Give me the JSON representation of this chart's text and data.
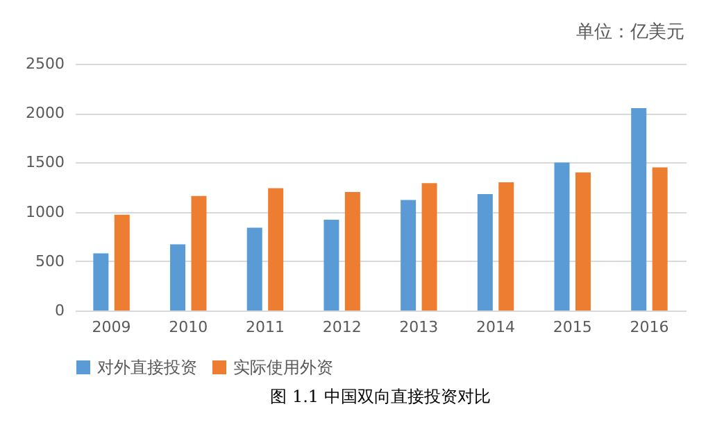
{
  "chart_data": {
    "type": "bar",
    "title": "图 1.1  中国双向直接投资对比",
    "annotations": [
      "单位：亿美元"
    ],
    "categories": [
      "2009",
      "2010",
      "2011",
      "2012",
      "2013",
      "2014",
      "2015",
      "2016"
    ],
    "series": [
      {
        "name": "对外直接投资",
        "color": "#5b9bd5",
        "values": [
          580,
          670,
          840,
          920,
          1120,
          1180,
          1500,
          2050
        ]
      },
      {
        "name": "实际使用外资",
        "color": "#ed7d31",
        "values": [
          970,
          1160,
          1240,
          1200,
          1290,
          1300,
          1400,
          1450
        ]
      }
    ],
    "ylim": [
      0,
      2500
    ],
    "yticks": [
      0,
      500,
      1000,
      1500,
      2000,
      2500
    ],
    "grid": "y",
    "legend": "bottom"
  }
}
